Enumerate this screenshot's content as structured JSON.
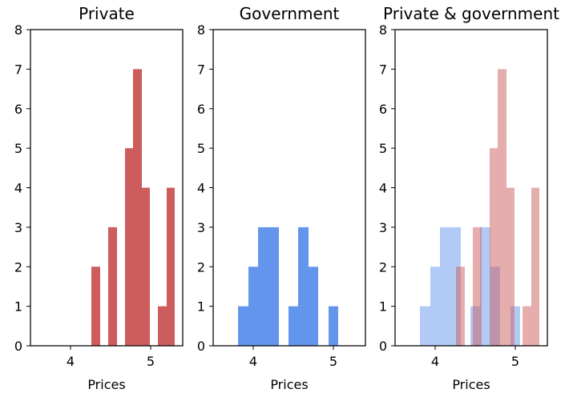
{
  "chart_data": [
    {
      "type": "bar",
      "title": "Private",
      "xlabel": "Prices",
      "ylabel": "",
      "xlim": [
        3.5,
        5.4
      ],
      "ylim": [
        0,
        8
      ],
      "xticks": [
        "4",
        "5"
      ],
      "yticks": [
        "0",
        "1",
        "2",
        "3",
        "4",
        "5",
        "6",
        "7",
        "8"
      ],
      "series": [
        {
          "color": "#cd5c5c",
          "bins": [
            {
              "x0": 4.26,
              "x1": 4.37,
              "count": 2
            },
            {
              "x0": 4.47,
              "x1": 4.58,
              "count": 3
            },
            {
              "x0": 4.68,
              "x1": 4.78,
              "count": 5
            },
            {
              "x0": 4.78,
              "x1": 4.89,
              "count": 7
            },
            {
              "x0": 4.89,
              "x1": 4.99,
              "count": 4
            },
            {
              "x0": 5.09,
              "x1": 5.2,
              "count": 1
            },
            {
              "x0": 5.2,
              "x1": 5.3,
              "count": 4
            }
          ]
        }
      ]
    },
    {
      "type": "bar",
      "title": "Government",
      "xlabel": "Prices",
      "ylabel": "",
      "xlim": [
        3.5,
        5.4
      ],
      "ylim": [
        0,
        8
      ],
      "xticks": [
        "4",
        "5"
      ],
      "yticks": [
        "0",
        "1",
        "2",
        "3",
        "4",
        "5",
        "6",
        "7",
        "8"
      ],
      "series": [
        {
          "color": "#6495ed",
          "bins": [
            {
              "x0": 3.81,
              "x1": 3.94,
              "count": 1
            },
            {
              "x0": 3.94,
              "x1": 4.06,
              "count": 2
            },
            {
              "x0": 4.06,
              "x1": 4.32,
              "count": 3
            },
            {
              "x0": 4.44,
              "x1": 4.56,
              "count": 1
            },
            {
              "x0": 4.56,
              "x1": 4.69,
              "count": 3
            },
            {
              "x0": 4.69,
              "x1": 4.81,
              "count": 2
            },
            {
              "x0": 4.94,
              "x1": 5.06,
              "count": 1
            }
          ]
        }
      ]
    },
    {
      "type": "bar",
      "title": "Private & government",
      "xlabel": "Prices",
      "ylabel": "",
      "xlim": [
        3.5,
        5.4
      ],
      "ylim": [
        0,
        8
      ],
      "xticks": [
        "4",
        "5"
      ],
      "yticks": [
        "0",
        "1",
        "2",
        "3",
        "4",
        "5",
        "6",
        "7",
        "8"
      ],
      "series": [
        {
          "color": "#6495ed",
          "opacity": 0.5,
          "bins": [
            {
              "x0": 3.81,
              "x1": 3.94,
              "count": 1
            },
            {
              "x0": 3.94,
              "x1": 4.06,
              "count": 2
            },
            {
              "x0": 4.06,
              "x1": 4.32,
              "count": 3
            },
            {
              "x0": 4.44,
              "x1": 4.56,
              "count": 1
            },
            {
              "x0": 4.56,
              "x1": 4.69,
              "count": 3
            },
            {
              "x0": 4.69,
              "x1": 4.81,
              "count": 2
            },
            {
              "x0": 4.94,
              "x1": 5.06,
              "count": 1
            }
          ]
        },
        {
          "color": "#cd5c5c",
          "opacity": 0.5,
          "bins": [
            {
              "x0": 4.26,
              "x1": 4.37,
              "count": 2
            },
            {
              "x0": 4.47,
              "x1": 4.58,
              "count": 3
            },
            {
              "x0": 4.68,
              "x1": 4.78,
              "count": 5
            },
            {
              "x0": 4.78,
              "x1": 4.89,
              "count": 7
            },
            {
              "x0": 4.89,
              "x1": 4.99,
              "count": 4
            },
            {
              "x0": 5.09,
              "x1": 5.2,
              "count": 1
            },
            {
              "x0": 5.2,
              "x1": 5.3,
              "count": 4
            }
          ]
        }
      ]
    }
  ]
}
